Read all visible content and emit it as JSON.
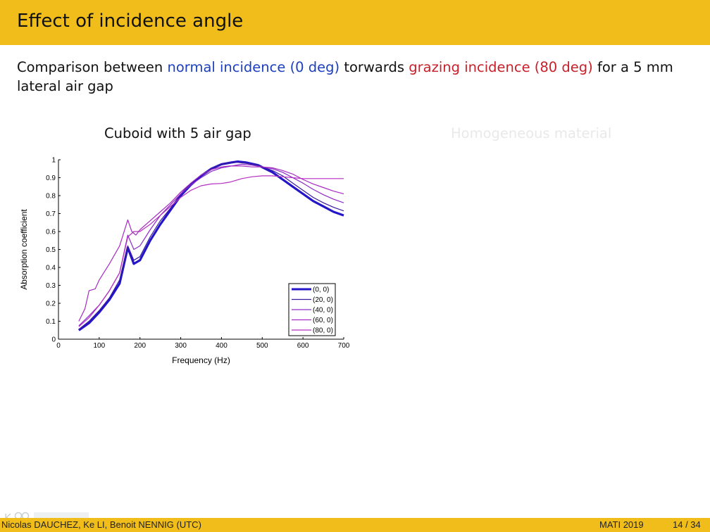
{
  "slide": {
    "title": "Effect of incidence angle",
    "intro_prefix": "Comparison between ",
    "intro_normal": "normal incidence (0 deg)",
    "intro_middle": " torwards ",
    "intro_grazing": "grazing incidence (80 deg)",
    "intro_suffix": " for a 5 mm lateral air gap",
    "normal_color": "#1d3fbf",
    "grazing_color": "#c8202a",
    "left_chart_title": "Cuboid with 5 air gap",
    "right_chart_title": "Homogeneous material"
  },
  "footer": {
    "authors": "Nicolas DAUCHEZ, Ke LI, Benoit NENNIG  (UTC)",
    "conference": "MATI 2019",
    "page": "14 / 34"
  },
  "chart_data": {
    "type": "line",
    "title": "",
    "xlabel": "Frequency (Hz)",
    "ylabel": "Absorption coefficient",
    "xlim": [
      0,
      700
    ],
    "ylim": [
      0,
      1
    ],
    "xticks": [
      0,
      100,
      200,
      300,
      400,
      500,
      600,
      700
    ],
    "yticks": [
      0,
      0.1,
      0.2,
      0.3,
      0.4,
      0.5,
      0.6,
      0.7,
      0.8,
      0.9,
      1
    ],
    "legend_position": "bottom-right",
    "grid": false,
    "series": [
      {
        "name": "(0, 0)",
        "color": "#2416c8",
        "style": "thick",
        "x": [
          50,
          75,
          100,
          125,
          150,
          170,
          185,
          200,
          225,
          250,
          275,
          300,
          325,
          350,
          375,
          400,
          425,
          440,
          460,
          490,
          525,
          550,
          575,
          600,
          625,
          650,
          675,
          700
        ],
        "y": [
          0.05,
          0.09,
          0.15,
          0.22,
          0.31,
          0.51,
          0.42,
          0.44,
          0.55,
          0.64,
          0.72,
          0.8,
          0.86,
          0.91,
          0.95,
          0.975,
          0.985,
          0.99,
          0.985,
          0.97,
          0.93,
          0.89,
          0.85,
          0.81,
          0.77,
          0.74,
          0.71,
          0.69
        ]
      },
      {
        "name": "(20, 0)",
        "color": "#3a1a9e",
        "style": "thin",
        "x": [
          50,
          75,
          100,
          125,
          150,
          170,
          185,
          200,
          225,
          250,
          275,
          300,
          325,
          350,
          375,
          400,
          425,
          440,
          460,
          490,
          525,
          550,
          575,
          600,
          625,
          650,
          675,
          700
        ],
        "y": [
          0.055,
          0.1,
          0.16,
          0.23,
          0.33,
          0.52,
          0.44,
          0.46,
          0.57,
          0.66,
          0.73,
          0.81,
          0.87,
          0.915,
          0.95,
          0.975,
          0.985,
          0.985,
          0.98,
          0.97,
          0.94,
          0.91,
          0.87,
          0.83,
          0.79,
          0.76,
          0.735,
          0.715
        ]
      },
      {
        "name": "(40, 0)",
        "color": "#8e2bc8",
        "style": "thin",
        "x": [
          50,
          75,
          100,
          125,
          150,
          170,
          185,
          200,
          225,
          250,
          275,
          300,
          325,
          350,
          375,
          400,
          425,
          450,
          475,
          500,
          525,
          550,
          575,
          600,
          625,
          650,
          675,
          700
        ],
        "y": [
          0.075,
          0.13,
          0.19,
          0.27,
          0.37,
          0.58,
          0.5,
          0.52,
          0.61,
          0.69,
          0.75,
          0.81,
          0.86,
          0.9,
          0.935,
          0.955,
          0.965,
          0.975,
          0.97,
          0.96,
          0.95,
          0.93,
          0.9,
          0.87,
          0.835,
          0.805,
          0.78,
          0.76
        ]
      },
      {
        "name": "(60, 0)",
        "color": "#a62bc2",
        "style": "thin",
        "x": [
          50,
          65,
          75,
          90,
          100,
          125,
          150,
          170,
          180,
          190,
          200,
          225,
          250,
          275,
          300,
          325,
          350,
          375,
          400,
          420,
          450,
          475,
          500,
          525,
          550,
          575,
          600,
          625,
          650,
          675,
          700
        ],
        "y": [
          0.1,
          0.17,
          0.27,
          0.28,
          0.33,
          0.42,
          0.52,
          0.665,
          0.6,
          0.58,
          0.61,
          0.66,
          0.71,
          0.76,
          0.82,
          0.87,
          0.915,
          0.945,
          0.96,
          0.965,
          0.965,
          0.96,
          0.96,
          0.955,
          0.94,
          0.92,
          0.89,
          0.865,
          0.845,
          0.825,
          0.81
        ]
      },
      {
        "name": "(80, 0)",
        "color": "#b52fc0",
        "style": "thin",
        "x": [
          50,
          75,
          100,
          125,
          150,
          170,
          185,
          200,
          225,
          250,
          275,
          300,
          325,
          350,
          375,
          400,
          420,
          450,
          475,
          500,
          525,
          550,
          575,
          600,
          625,
          650,
          675,
          700
        ],
        "y": [
          0.07,
          0.12,
          0.19,
          0.27,
          0.37,
          0.57,
          0.6,
          0.6,
          0.64,
          0.69,
          0.74,
          0.79,
          0.83,
          0.855,
          0.865,
          0.868,
          0.875,
          0.895,
          0.905,
          0.91,
          0.91,
          0.905,
          0.9,
          0.895,
          0.895,
          0.895,
          0.895,
          0.895
        ]
      }
    ]
  }
}
